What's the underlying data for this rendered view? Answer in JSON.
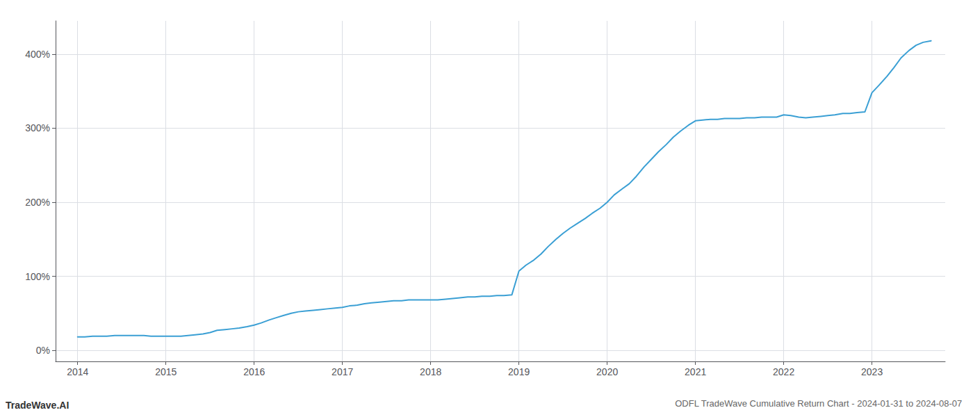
{
  "chart_data": {
    "type": "line",
    "title": "ODFL TradeWave Cumulative Return Chart - 2024-01-31 to 2024-08-07",
    "annotations": [
      "TradeWave.AI"
    ],
    "color": "#3a9fd4",
    "x": [
      2014.0,
      2014.08,
      2014.17,
      2014.25,
      2014.33,
      2014.42,
      2014.5,
      2014.58,
      2014.67,
      2014.75,
      2014.83,
      2014.92,
      2015.0,
      2015.08,
      2015.17,
      2015.25,
      2015.33,
      2015.42,
      2015.5,
      2015.58,
      2015.67,
      2015.75,
      2015.83,
      2015.92,
      2016.0,
      2016.08,
      2016.17,
      2016.25,
      2016.33,
      2016.42,
      2016.5,
      2016.58,
      2016.67,
      2016.75,
      2016.83,
      2016.92,
      2017.0,
      2017.08,
      2017.17,
      2017.25,
      2017.33,
      2017.42,
      2017.5,
      2017.58,
      2017.67,
      2017.75,
      2017.83,
      2017.92,
      2018.0,
      2018.08,
      2018.17,
      2018.25,
      2018.33,
      2018.42,
      2018.5,
      2018.58,
      2018.67,
      2018.75,
      2018.83,
      2018.92,
      2019.0,
      2019.08,
      2019.17,
      2019.25,
      2019.33,
      2019.42,
      2019.5,
      2019.58,
      2019.67,
      2019.75,
      2019.83,
      2019.92,
      2020.0,
      2020.08,
      2020.17,
      2020.25,
      2020.33,
      2020.42,
      2020.5,
      2020.58,
      2020.67,
      2020.75,
      2020.83,
      2020.92,
      2021.0,
      2021.08,
      2021.17,
      2021.25,
      2021.33,
      2021.42,
      2021.5,
      2021.58,
      2021.67,
      2021.75,
      2021.83,
      2021.92,
      2022.0,
      2022.08,
      2022.17,
      2022.25,
      2022.33,
      2022.42,
      2022.5,
      2022.58,
      2022.67,
      2022.75,
      2022.83,
      2022.92,
      2023.0,
      2023.08,
      2023.17,
      2023.25,
      2023.33,
      2023.42,
      2023.5,
      2023.58,
      2023.67
    ],
    "values": [
      18,
      18,
      19,
      19,
      19,
      20,
      20,
      20,
      20,
      20,
      19,
      19,
      19,
      19,
      19,
      20,
      21,
      22,
      24,
      27,
      28,
      29,
      30,
      32,
      34,
      37,
      41,
      44,
      47,
      50,
      52,
      53,
      54,
      55,
      56,
      57,
      58,
      60,
      61,
      63,
      64,
      65,
      66,
      67,
      67,
      68,
      68,
      68,
      68,
      68,
      69,
      70,
      71,
      72,
      72,
      73,
      73,
      74,
      74,
      75,
      107,
      115,
      122,
      130,
      140,
      150,
      158,
      165,
      172,
      178,
      185,
      192,
      200,
      210,
      218,
      225,
      235,
      248,
      258,
      268,
      278,
      288,
      296,
      304,
      310,
      311,
      312,
      312,
      313,
      313,
      313,
      314,
      314,
      315,
      315,
      315,
      318,
      317,
      315,
      314,
      315,
      316,
      317,
      318,
      320,
      320,
      321,
      322,
      348,
      358,
      370,
      382,
      395,
      405,
      412,
      416,
      418
    ],
    "xlim": [
      2013.75,
      2023.83
    ],
    "xticks": [
      2014,
      2015,
      2016,
      2017,
      2018,
      2019,
      2020,
      2021,
      2022,
      2023
    ],
    "ylim": [
      -15,
      445
    ],
    "yticks": [
      {
        "value": 0,
        "label": "0%"
      },
      {
        "value": 100,
        "label": "100%"
      },
      {
        "value": 200,
        "label": "200%"
      },
      {
        "value": 300,
        "label": "300%"
      },
      {
        "value": 400,
        "label": "400%"
      }
    ],
    "grid": true
  }
}
